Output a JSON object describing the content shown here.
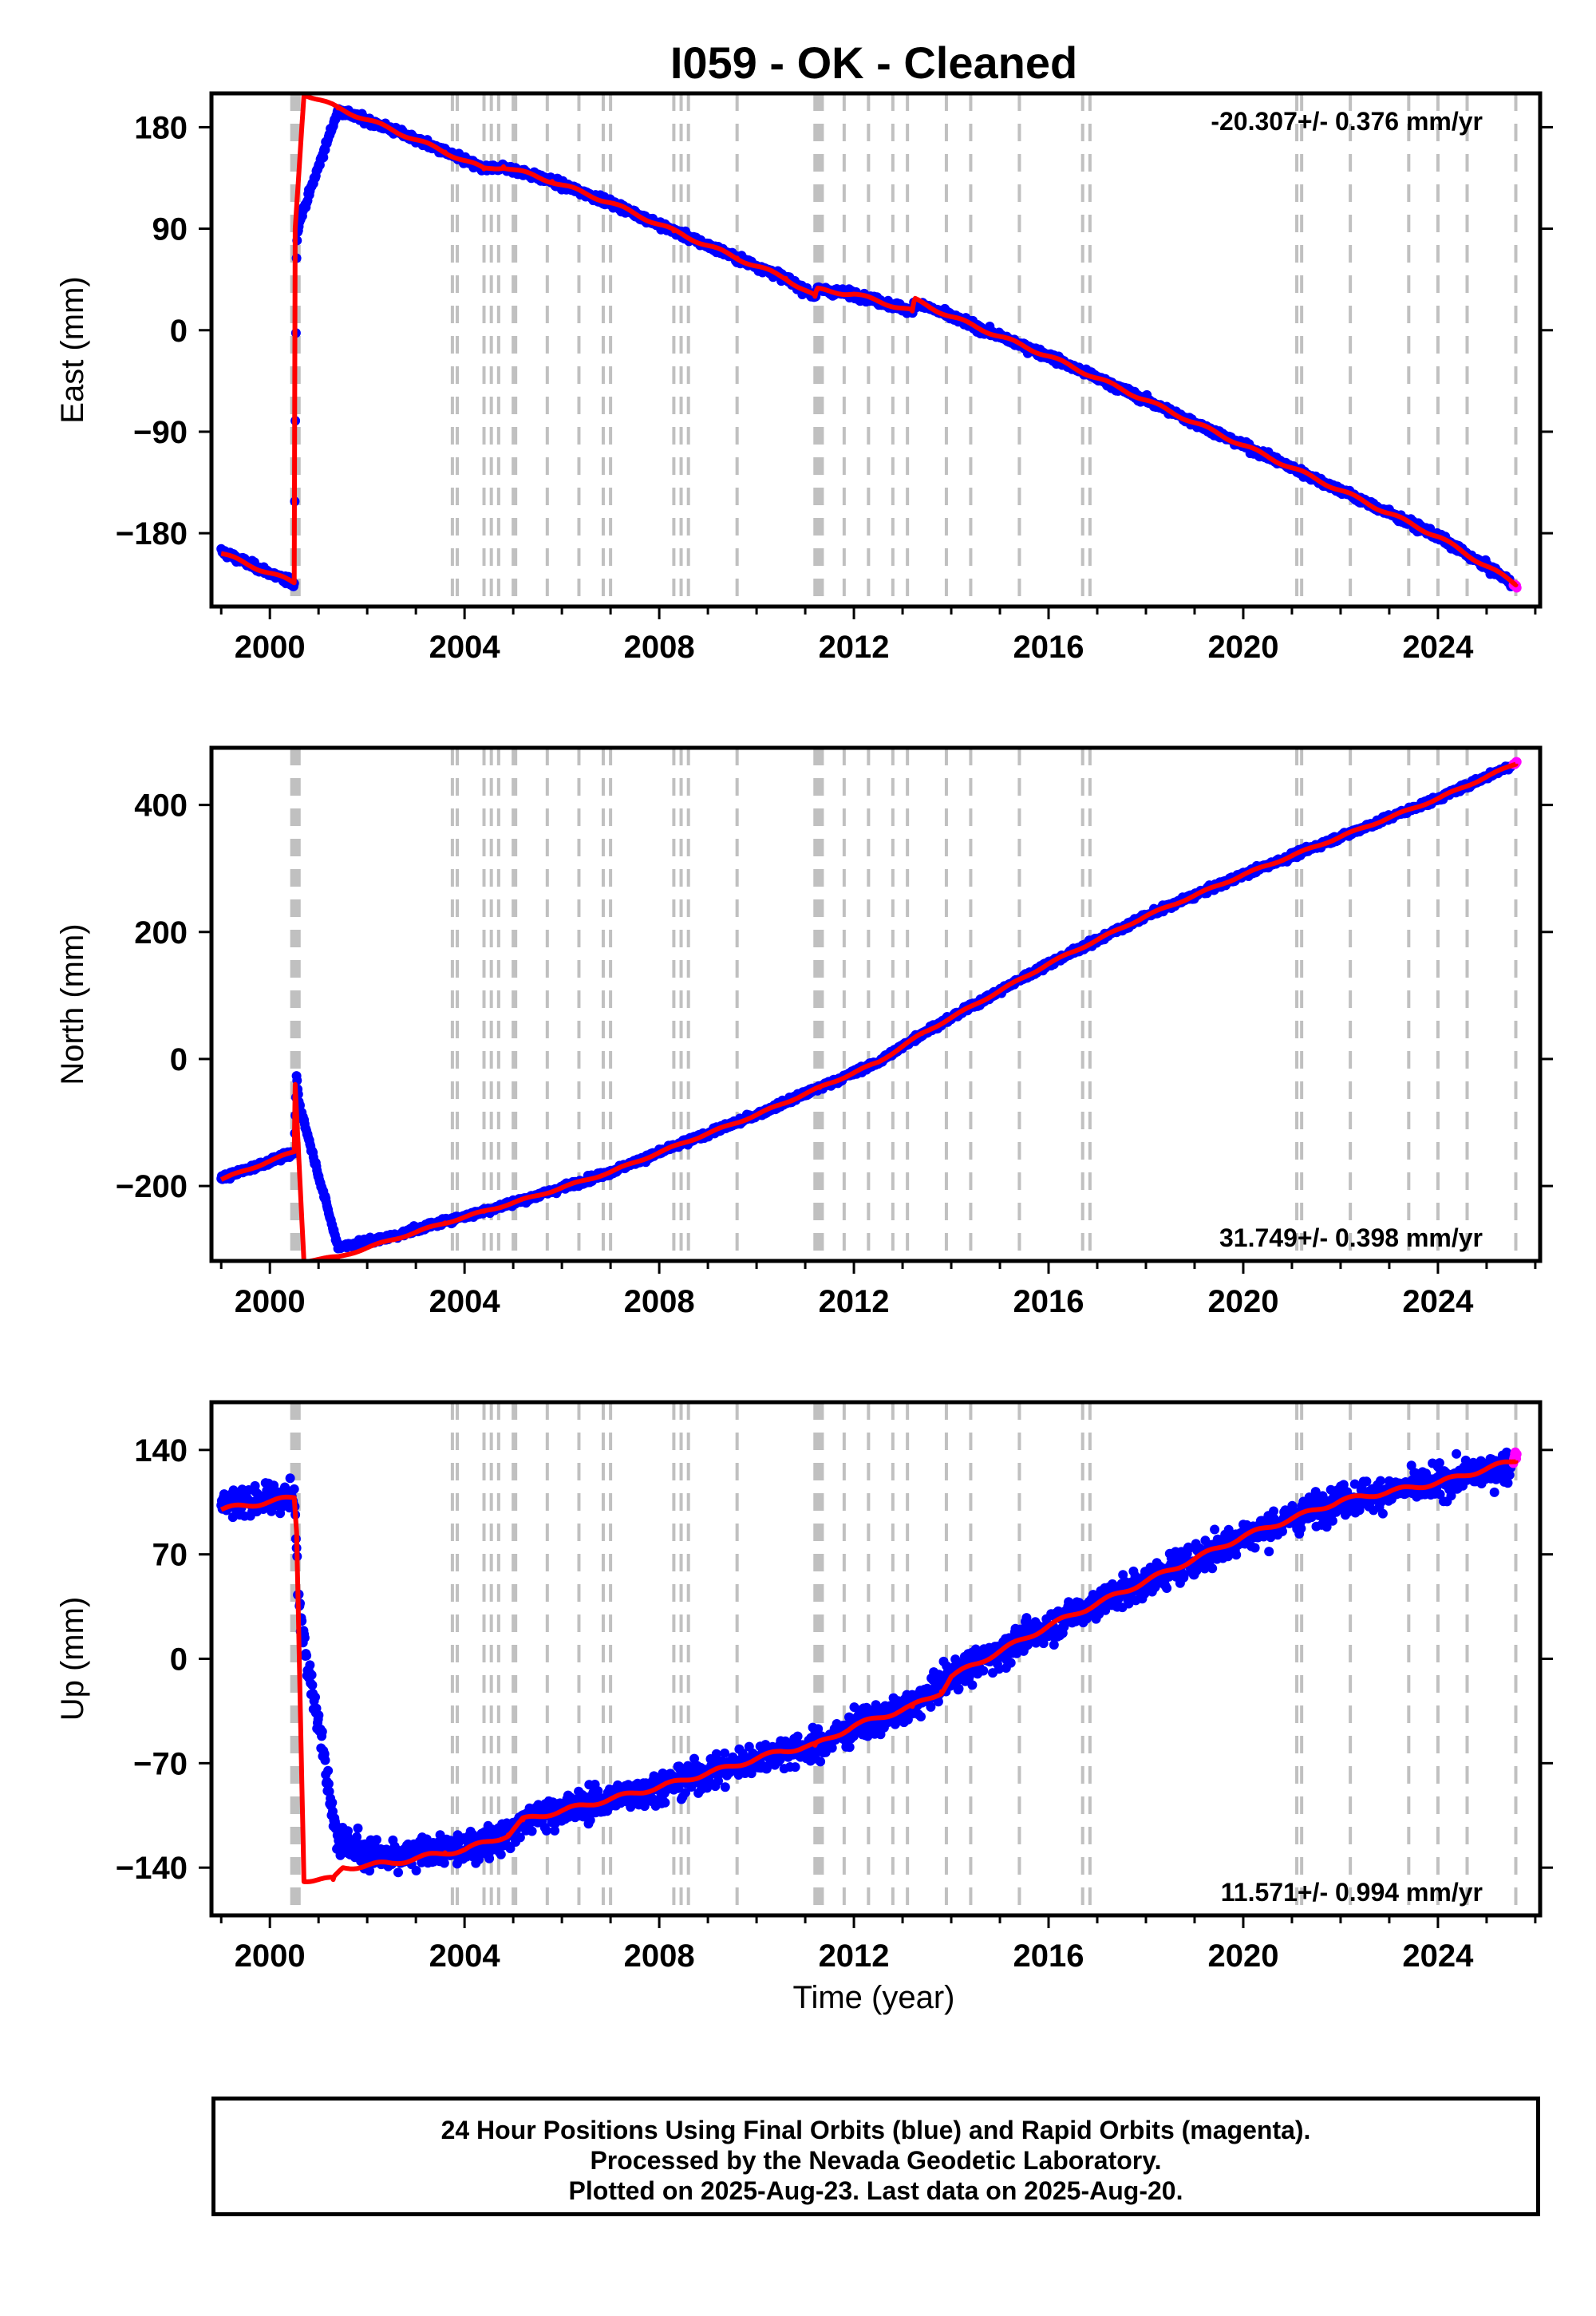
{
  "title": "I059  - OK - Cleaned",
  "x_label": "Time (year)",
  "footer": {
    "line1": "24 Hour Positions Using Final Orbits (blue) and Rapid Orbits (magenta).",
    "line2": "Processed by the Nevada Geodetic Laboratory.",
    "line3": "Plotted on 2025-Aug-23. Last data on 2025-Aug-20."
  },
  "colors": {
    "final_orbits": "#0000ff",
    "rapid_orbits": "#ff00ff",
    "model": "#ff0000",
    "event_lines": "#c0c0c0"
  },
  "chart_data": [
    {
      "type": "scatter",
      "panel": "east",
      "ylabel": "East (mm)",
      "xlabel": "",
      "xlim": [
        1998.8,
        2026.1
      ],
      "ylim": [
        -245,
        210
      ],
      "xticks": [
        2000,
        2004,
        2008,
        2012,
        2016,
        2020,
        2024
      ],
      "yticks": [
        -180,
        -90,
        0,
        90,
        180
      ],
      "ytick_labels": [
        "−180",
        "−90",
        "0",
        "90",
        "180"
      ],
      "rate_label": "-20.307+/- 0.376 mm/yr",
      "rate_position": "top-right",
      "noise_mm": 3.5,
      "series": [
        {
          "name": "Final Orbits",
          "color": "#0000ff",
          "x": [
            1999.0,
            2000.5,
            2000.55,
            2000.6,
            2001.4,
            2002.5,
            2003.6,
            2004.4,
            2004.8,
            2005.8,
            2007.0,
            2008.3,
            2009.6,
            2010.6,
            2011.2,
            2011.25,
            2012.0,
            2013.2,
            2013.25,
            2014.0,
            2016.0,
            2018.0,
            2020.0,
            2022.0,
            2024.0,
            2025.5
          ],
          "y": [
            -196,
            -225,
            80,
            95,
            195,
            178,
            158,
            143,
            145,
            132,
            113,
            88,
            64,
            46,
            30,
            36,
            32,
            17,
            25,
            12,
            -23,
            -62,
            -102,
            -142,
            -183,
            -223
          ]
        },
        {
          "name": "Rapid Orbits",
          "color": "#ff00ff",
          "x": [
            2025.55,
            2025.62
          ],
          "y": [
            -225,
            -228
          ]
        }
      ],
      "model": {
        "x": [
          1999.0,
          2000.5,
          2000.52,
          2000.7,
          2001.4,
          2002.5,
          2003.6,
          2004.4,
          2004.8,
          2005.8,
          2007.0,
          2008.3,
          2009.6,
          2010.6,
          2011.2,
          2011.25,
          2012.0,
          2013.2,
          2013.25,
          2014.0,
          2016.0,
          2018.0,
          2020.0,
          2022.0,
          2024.0,
          2025.6
        ],
        "y": [
          -198,
          -224,
          90,
          210,
          197,
          178,
          158,
          143,
          145,
          132,
          113,
          88,
          64,
          46,
          30,
          36,
          32,
          17,
          27,
          12,
          -23,
          -62,
          -102,
          -142,
          -183,
          -225
        ]
      }
    },
    {
      "type": "scatter",
      "panel": "north",
      "ylabel": "North (mm)",
      "xlabel": "",
      "xlim": [
        1998.8,
        2026.1
      ],
      "ylim": [
        -318,
        490
      ],
      "xticks": [
        2000,
        2004,
        2008,
        2012,
        2016,
        2020,
        2024
      ],
      "yticks": [
        -200,
        0,
        200,
        400
      ],
      "ytick_labels": [
        "−200",
        "0",
        "200",
        "400"
      ],
      "rate_label": "31.749+/- 0.398 mm/yr",
      "rate_position": "bottom-right",
      "noise_mm": 5,
      "series": [
        {
          "name": "Final Orbits",
          "color": "#0000ff",
          "x": [
            1999.0,
            2000.5,
            2000.55,
            2000.6,
            2001.4,
            2002.5,
            2003.6,
            2004.4,
            2005.5,
            2007.0,
            2008.5,
            2010.0,
            2011.3,
            2012.5,
            2013.4,
            2014.0,
            2016.0,
            2018.0,
            2020.0,
            2022.0,
            2024.0,
            2025.5
          ],
          "y": [
            -188,
            -148,
            -25,
            -70,
            -296,
            -280,
            -255,
            -240,
            -215,
            -178,
            -132,
            -88,
            -45,
            -5,
            40,
            65,
            150,
            225,
            290,
            350,
            410,
            462
          ]
        },
        {
          "name": "Rapid Orbits",
          "color": "#ff00ff",
          "x": [
            2025.55,
            2025.62
          ],
          "y": [
            464,
            468
          ]
        }
      ],
      "model": {
        "x": [
          1999.0,
          2000.5,
          2000.52,
          2000.7,
          2001.4,
          2002.5,
          2003.6,
          2004.4,
          2005.5,
          2007.0,
          2008.5,
          2010.0,
          2011.3,
          2012.5,
          2013.4,
          2014.0,
          2016.0,
          2018.0,
          2020.0,
          2022.0,
          2024.0,
          2025.6
        ],
        "y": [
          -190,
          -146,
          -40,
          -318,
          -312,
          -285,
          -258,
          -240,
          -215,
          -178,
          -132,
          -88,
          -45,
          -5,
          40,
          65,
          150,
          225,
          290,
          350,
          410,
          465
        ]
      }
    },
    {
      "type": "scatter",
      "panel": "up",
      "ylabel": "Up (mm)",
      "xlabel": "Time (year)",
      "xlim": [
        1998.8,
        2026.1
      ],
      "ylim": [
        -172,
        172
      ],
      "xticks": [
        2000,
        2004,
        2008,
        2012,
        2016,
        2020,
        2024
      ],
      "yticks": [
        -140,
        -70,
        0,
        70,
        140
      ],
      "ytick_labels": [
        "−140",
        "−70",
        "0",
        "70",
        "140"
      ],
      "rate_label": "11.571+/- 0.994 mm/yr",
      "rate_position": "bottom-right",
      "noise_mm": 11,
      "series": [
        {
          "name": "Final Orbits",
          "color": "#0000ff",
          "x": [
            1999.0,
            2000.5,
            2000.55,
            2000.6,
            2001.4,
            2002.5,
            2003.6,
            2004.0,
            2004.9,
            2005.2,
            2006.5,
            2008.0,
            2009.5,
            2010.5,
            2011.2,
            2012.0,
            2013.2,
            2014.0,
            2015.0,
            2016.0,
            2018.0,
            2020.0,
            2022.0,
            2024.0,
            2025.5
          ],
          "y": [
            104,
            108,
            70,
            35,
            -122,
            -135,
            -127,
            -128,
            -118,
            -108,
            -98,
            -86,
            -72,
            -62,
            -60,
            -45,
            -32,
            -12,
            5,
            22,
            52,
            82,
            106,
            118,
            130
          ]
        },
        {
          "name": "Rapid Orbits",
          "color": "#ff00ff",
          "x": [
            2025.55,
            2025.62
          ],
          "y": [
            135,
            138
          ]
        }
      ],
      "model": {
        "x": [
          1999.0,
          2000.5,
          2000.55,
          2000.7,
          2001.3,
          2001.5,
          2002.5,
          2003.6,
          2004.0,
          2004.9,
          2005.2,
          2006.5,
          2008.0,
          2009.5,
          2010.5,
          2011.2,
          2012.0,
          2013.2,
          2013.8,
          2014.0,
          2015.0,
          2016.0,
          2018.0,
          2020.0,
          2022.0,
          2024.0,
          2025.6
        ],
        "y": [
          100,
          108,
          85,
          -148,
          -148,
          -140,
          -137,
          -130,
          -128,
          -118,
          -108,
          -98,
          -86,
          -72,
          -62,
          -58,
          -45,
          -32,
          -22,
          -12,
          5,
          22,
          52,
          82,
          106,
          118,
          133
        ]
      }
    }
  ],
  "event_lines_x": [
    2000.45,
    2000.5,
    2000.55,
    2000.6,
    2003.75,
    2003.85,
    2004.4,
    2004.55,
    2004.7,
    2005.0,
    2005.05,
    2005.7,
    2006.35,
    2006.85,
    2007.0,
    2008.3,
    2008.45,
    2008.6,
    2009.6,
    2011.2,
    2011.25,
    2011.3,
    2011.35,
    2011.8,
    2012.3,
    2012.8,
    2013.1,
    2013.9,
    2014.4,
    2015.4,
    2016.7,
    2016.85,
    2021.1,
    2021.2,
    2022.2,
    2023.4,
    2024.0,
    2024.6,
    2025.6
  ]
}
